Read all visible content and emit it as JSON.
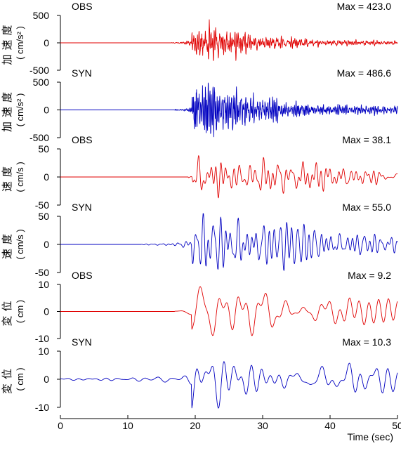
{
  "chart_data": {
    "type": "line",
    "xlabel": "Time (sec)",
    "xlim": [
      0,
      50
    ],
    "xticks": [
      0,
      10,
      20,
      30,
      40,
      50
    ],
    "colors": {
      "OBS": "#e00000",
      "SYN": "#0000c0"
    },
    "panels": [
      {
        "kind": "OBS",
        "max_label": "Max = 423.0",
        "ylabel_jp": "加速度",
        "ylabel_unit": "( cm/s² )",
        "ylim": [
          -500,
          500
        ],
        "yticks": [
          500,
          0,
          -500
        ],
        "max": 423.0,
        "start": 16.5,
        "end": 50,
        "wave": "acc",
        "seed": 11
      },
      {
        "kind": "SYN",
        "max_label": "Max = 486.6",
        "ylabel_jp": "加速度",
        "ylabel_unit": "( cm/s² )",
        "ylim": [
          -500,
          500
        ],
        "yticks": [
          500,
          0,
          -500
        ],
        "max": 486.6,
        "start": 17.0,
        "end": 50,
        "wave": "acc",
        "seed": 23
      },
      {
        "kind": "OBS",
        "max_label": "Max = 38.1",
        "ylabel_jp": "速度",
        "ylabel_unit": "( cm/s )",
        "ylim": [
          -50,
          50
        ],
        "yticks": [
          50,
          0,
          -50
        ],
        "max": 38.1,
        "start": 19.0,
        "end": 50,
        "wave": "vel",
        "seed": 37
      },
      {
        "kind": "SYN",
        "max_label": "Max = 55.0",
        "ylabel_jp": "速度",
        "ylabel_unit": "( cm/s )",
        "ylim": [
          -50,
          50
        ],
        "yticks": [
          50,
          0,
          -50
        ],
        "max": 55.0,
        "start": 12.0,
        "end": 50,
        "wave": "vel",
        "seed": 41
      },
      {
        "kind": "OBS",
        "max_label": "Max = 9.2",
        "ylabel_jp": "変位",
        "ylabel_unit": "( cm )",
        "ylim": [
          -10,
          10
        ],
        "yticks": [
          10,
          0,
          -10
        ],
        "max": 9.2,
        "start": 17.0,
        "end": 50,
        "wave": "disp",
        "seed": 53
      },
      {
        "kind": "SYN",
        "max_label": "Max = 10.3",
        "ylabel_jp": "変位",
        "ylabel_unit": "( cm )",
        "ylim": [
          -10,
          10
        ],
        "yticks": [
          10,
          0,
          -10
        ],
        "max": 10.3,
        "start": 0,
        "end": 50,
        "wave": "disp",
        "seed": 67
      }
    ]
  }
}
